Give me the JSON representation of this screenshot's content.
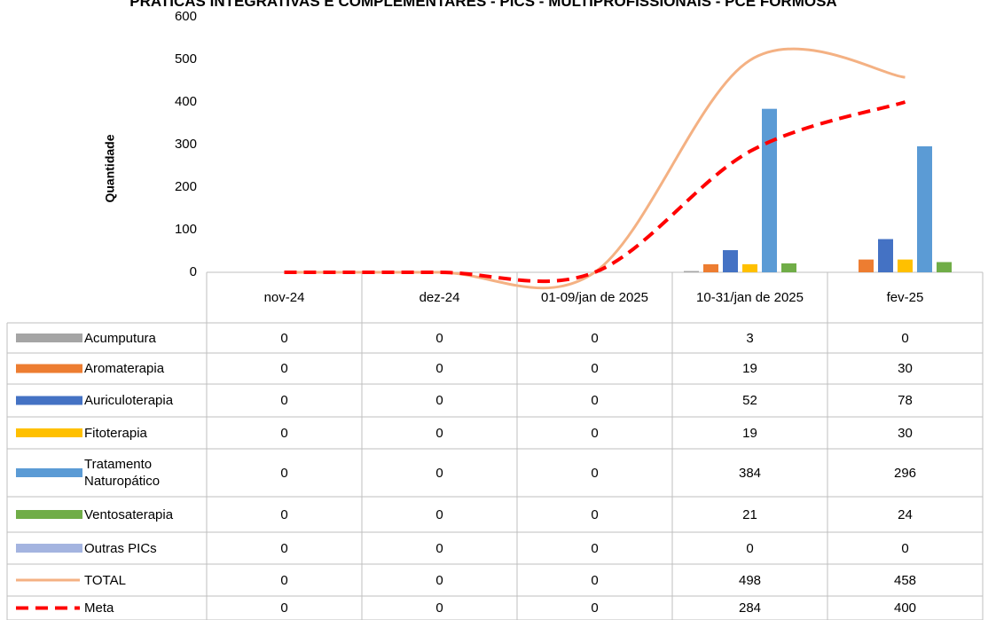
{
  "chart_data": {
    "type": "bar",
    "title": "PRATICAS INTEGRATIVAS E COMPLEMENTARES - PICS - MULTIPROFISSIONAIS - PCE FORMOSA",
    "y_label": "Quantidade",
    "categories": [
      "nov-24",
      "dez-24",
      "01-09/jan de 2025",
      "10-31/jan de 2025",
      "fev-25"
    ],
    "series": [
      {
        "name": "Acumputura",
        "type": "bar",
        "color": "#a5a5a5",
        "values": [
          0,
          0,
          0,
          3,
          0
        ]
      },
      {
        "name": "Aromaterapia",
        "type": "bar",
        "color": "#ed7d31",
        "values": [
          0,
          0,
          0,
          19,
          30
        ]
      },
      {
        "name": "Auriculoterapia",
        "type": "bar",
        "color": "#4472c4",
        "values": [
          0,
          0,
          0,
          52,
          78
        ]
      },
      {
        "name": "Fitoterapia",
        "type": "bar",
        "color": "#ffc000",
        "values": [
          0,
          0,
          0,
          19,
          30
        ]
      },
      {
        "name": "Tratamento Naturopático",
        "type": "bar",
        "color": "#5b9bd5",
        "values": [
          0,
          0,
          0,
          384,
          296
        ]
      },
      {
        "name": "Ventosaterapia",
        "type": "bar",
        "color": "#70ad47",
        "values": [
          0,
          0,
          0,
          21,
          24
        ]
      },
      {
        "name": "Outras PICs",
        "type": "bar",
        "color": "#a4b4e0",
        "values": [
          0,
          0,
          0,
          0,
          0
        ]
      },
      {
        "name": "TOTAL",
        "type": "line",
        "smooth": true,
        "color": "#f4b183",
        "values": [
          0,
          0,
          0,
          498,
          458
        ]
      },
      {
        "name": "Meta",
        "type": "line",
        "smooth": true,
        "dashed": true,
        "color": "#ff0000",
        "values": [
          0,
          0,
          0,
          284,
          400
        ]
      }
    ],
    "ylim": [
      0,
      600
    ],
    "yticks": [
      0,
      100,
      200,
      300,
      400,
      500,
      600
    ],
    "grid": false
  }
}
